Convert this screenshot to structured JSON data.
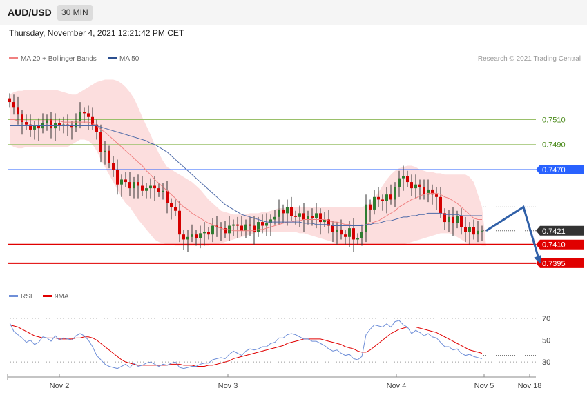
{
  "header": {
    "symbol": "AUD/USD",
    "timeframe_label": "30 MIN",
    "datetime": "Thursday, November 4, 2021 12:21:42 PM CET",
    "copyright": "Research © 2021 Trading Central"
  },
  "colors": {
    "bollinger_band": "#fbd8d8",
    "ma20": "#f08080",
    "ma50": "#4d6aa8",
    "candle_up": "#2e7d32",
    "candle_down": "#d50000",
    "resistance_line": "#9ac06a",
    "pivot_line": "#2962ff",
    "support_line": "#e00000",
    "current_price_tag": "#333333",
    "rsi": "#6f8fd8",
    "rsi_ma": "#e00000",
    "forecast_arrow": "#3060a8"
  },
  "chart_data": [
    {
      "type": "candlestick",
      "legend": [
        {
          "label": "MA 20 + Bollinger Bands",
          "color": "#f08080"
        },
        {
          "label": "MA 50",
          "color": "#4d6aa8"
        }
      ],
      "x_tick_labels": [
        "Nov 2",
        "Nov 3",
        "Nov 4",
        "Nov 5",
        "Nov 18"
      ],
      "ylim": [
        0.7385,
        0.7545
      ],
      "levels": [
        {
          "label": "0.7510",
          "value": 0.751,
          "kind": "resistance"
        },
        {
          "label": "0.7490",
          "value": 0.749,
          "kind": "resistance"
        },
        {
          "label": "0.7470",
          "value": 0.747,
          "kind": "pivot"
        },
        {
          "label": "0.7421",
          "value": 0.7421,
          "kind": "current"
        },
        {
          "label": "0.7410",
          "value": 0.741,
          "kind": "support"
        },
        {
          "label": "0.7395",
          "value": 0.7395,
          "kind": "support"
        }
      ],
      "close": [
        0.7524,
        0.752,
        0.7514,
        0.7508,
        0.7506,
        0.7502,
        0.7505,
        0.7503,
        0.7507,
        0.751,
        0.7503,
        0.7507,
        0.7505,
        0.7506,
        0.7505,
        0.7504,
        0.7509,
        0.7516,
        0.7515,
        0.7512,
        0.7506,
        0.75,
        0.7484,
        0.7485,
        0.7475,
        0.747,
        0.7458,
        0.7462,
        0.746,
        0.7455,
        0.746,
        0.7457,
        0.7453,
        0.7455,
        0.7457,
        0.7455,
        0.7452,
        0.7453,
        0.7443,
        0.744,
        0.7437,
        0.7418,
        0.7414,
        0.7416,
        0.7418,
        0.7415,
        0.7419,
        0.742,
        0.7418,
        0.7425,
        0.7424,
        0.7423,
        0.7419,
        0.7425,
        0.7426,
        0.7425,
        0.7421,
        0.7426,
        0.7425,
        0.742,
        0.7428,
        0.7425,
        0.7427,
        0.743,
        0.7432,
        0.7438,
        0.7435,
        0.744,
        0.7433,
        0.7432,
        0.7435,
        0.743,
        0.7433,
        0.7431,
        0.7435,
        0.7428,
        0.743,
        0.7425,
        0.742,
        0.7422,
        0.7418,
        0.7416,
        0.7423,
        0.7414,
        0.7415,
        0.742,
        0.7442,
        0.7438,
        0.7448,
        0.7446,
        0.7445,
        0.745,
        0.7446,
        0.7456,
        0.7463,
        0.7465,
        0.746,
        0.7455,
        0.7458,
        0.7456,
        0.745,
        0.7454,
        0.745,
        0.7448,
        0.7435,
        0.7428,
        0.7432,
        0.7427,
        0.7433,
        0.7424,
        0.742,
        0.7424,
        0.7418,
        0.7421,
        0.7421
      ],
      "ma20": [
        0.751,
        0.751,
        0.7509,
        0.7509,
        0.7509,
        0.7509,
        0.7509,
        0.7509,
        0.7509,
        0.7509,
        0.7509,
        0.7509,
        0.7509,
        0.7508,
        0.7508,
        0.7508,
        0.7508,
        0.7508,
        0.7508,
        0.7508,
        0.7507,
        0.7505,
        0.7502,
        0.75,
        0.7497,
        0.7494,
        0.7491,
        0.7488,
        0.7485,
        0.7482,
        0.7479,
        0.7476,
        0.7473,
        0.7469,
        0.7466,
        0.7462,
        0.7459,
        0.7456,
        0.7453,
        0.745,
        0.7447,
        0.7443,
        0.744,
        0.7438,
        0.7435,
        0.7433,
        0.7431,
        0.7429,
        0.7427,
        0.7426,
        0.7424,
        0.7423,
        0.7422,
        0.7422,
        0.7421,
        0.7421,
        0.7421,
        0.7421,
        0.7421,
        0.7421,
        0.7422,
        0.7422,
        0.7423,
        0.7424,
        0.7425,
        0.7426,
        0.7427,
        0.7428,
        0.7428,
        0.7429,
        0.7429,
        0.743,
        0.743,
        0.743,
        0.743,
        0.743,
        0.743,
        0.7429,
        0.7428,
        0.7428,
        0.7427,
        0.7426,
        0.7426,
        0.7425,
        0.7425,
        0.7425,
        0.7426,
        0.7427,
        0.7428,
        0.7429,
        0.7431,
        0.7433,
        0.7435,
        0.7437,
        0.744,
        0.7442,
        0.7444,
        0.7446,
        0.7447,
        0.7449,
        0.745,
        0.7451,
        0.7451,
        0.7451,
        0.745,
        0.7448,
        0.7447,
        0.7445,
        0.7443,
        0.744,
        0.7437,
        0.7434,
        0.7431,
        0.743,
        0.743
      ],
      "ma50": [
        0.7505,
        0.7505,
        0.7505,
        0.7505,
        0.7505,
        0.7505,
        0.7505,
        0.7505,
        0.7505,
        0.7505,
        0.7505,
        0.7505,
        0.7505,
        0.7505,
        0.7505,
        0.7505,
        0.7505,
        0.7505,
        0.7505,
        0.7505,
        0.7505,
        0.7505,
        0.7504,
        0.7503,
        0.7502,
        0.7501,
        0.75,
        0.7499,
        0.7498,
        0.7497,
        0.7496,
        0.7495,
        0.7494,
        0.7493,
        0.7491,
        0.749,
        0.7488,
        0.7486,
        0.7484,
        0.7481,
        0.7478,
        0.7475,
        0.7472,
        0.7469,
        0.7466,
        0.7463,
        0.746,
        0.7457,
        0.7454,
        0.7451,
        0.7448,
        0.7445,
        0.7442,
        0.744,
        0.7438,
        0.7436,
        0.7434,
        0.7433,
        0.7432,
        0.7431,
        0.743,
        0.7429,
        0.7428,
        0.7428,
        0.7428,
        0.7428,
        0.7428,
        0.7428,
        0.7428,
        0.7428,
        0.7428,
        0.7427,
        0.7427,
        0.7427,
        0.7426,
        0.7426,
        0.7426,
        0.7426,
        0.7425,
        0.7425,
        0.7425,
        0.7425,
        0.7425,
        0.7425,
        0.7425,
        0.7425,
        0.7426,
        0.7426,
        0.7427,
        0.7427,
        0.7428,
        0.7429,
        0.7429,
        0.743,
        0.7431,
        0.7432,
        0.7432,
        0.7433,
        0.7433,
        0.7434,
        0.7434,
        0.7435,
        0.7435,
        0.7435,
        0.7435,
        0.7434,
        0.7434,
        0.7434,
        0.7434,
        0.7433,
        0.7433,
        0.7433,
        0.7433,
        0.7433,
        0.7433
      ],
      "bb_upper": [
        0.753,
        0.7532,
        0.7533,
        0.7533,
        0.7534,
        0.7534,
        0.7534,
        0.7534,
        0.7534,
        0.7534,
        0.7534,
        0.7534,
        0.7533,
        0.7532,
        0.7531,
        0.753,
        0.753,
        0.7532,
        0.7534,
        0.7536,
        0.7538,
        0.754,
        0.7541,
        0.7542,
        0.7542,
        0.7542,
        0.7541,
        0.7539,
        0.7536,
        0.7532,
        0.7527,
        0.752,
        0.7512,
        0.7505,
        0.7498,
        0.749,
        0.7483,
        0.7477,
        0.7472,
        0.747,
        0.7468,
        0.7466,
        0.7464,
        0.7462,
        0.746,
        0.7457,
        0.7454,
        0.745,
        0.7446,
        0.7443,
        0.744,
        0.7437,
        0.7436,
        0.7435,
        0.7434,
        0.7434,
        0.7434,
        0.7434,
        0.7435,
        0.7435,
        0.7435,
        0.7436,
        0.7436,
        0.7437,
        0.7438,
        0.7439,
        0.7439,
        0.744,
        0.744,
        0.744,
        0.744,
        0.744,
        0.744,
        0.744,
        0.744,
        0.744,
        0.744,
        0.744,
        0.744,
        0.744,
        0.744,
        0.744,
        0.744,
        0.744,
        0.744,
        0.744,
        0.7441,
        0.7443,
        0.7447,
        0.7452,
        0.7457,
        0.7462,
        0.7466,
        0.7469,
        0.7471,
        0.7472,
        0.7473,
        0.7473,
        0.7472,
        0.747,
        0.7469,
        0.7468,
        0.7468,
        0.7467,
        0.7467,
        0.7466,
        0.7466,
        0.7466,
        0.7466,
        0.7466,
        0.7466,
        0.7464,
        0.746,
        0.745,
        0.744
      ],
      "bb_lower": [
        0.749,
        0.7488,
        0.7487,
        0.7487,
        0.7488,
        0.7488,
        0.7488,
        0.7488,
        0.7488,
        0.7488,
        0.7488,
        0.7488,
        0.7488,
        0.7488,
        0.7488,
        0.749,
        0.7492,
        0.7494,
        0.7494,
        0.7493,
        0.749,
        0.7485,
        0.7478,
        0.7472,
        0.7466,
        0.746,
        0.7454,
        0.7448,
        0.7443,
        0.744,
        0.7435,
        0.743,
        0.7426,
        0.7422,
        0.7418,
        0.7414,
        0.7412,
        0.7411,
        0.741,
        0.741,
        0.7409,
        0.7409,
        0.7409,
        0.7409,
        0.7409,
        0.7409,
        0.7409,
        0.7409,
        0.7409,
        0.741,
        0.741,
        0.7411,
        0.7412,
        0.7413,
        0.7414,
        0.7415,
        0.7416,
        0.7417,
        0.7418,
        0.7419,
        0.742,
        0.742,
        0.742,
        0.742,
        0.742,
        0.742,
        0.742,
        0.742,
        0.742,
        0.742,
        0.7419,
        0.7419,
        0.7418,
        0.7417,
        0.7416,
        0.7415,
        0.7414,
        0.7413,
        0.7412,
        0.7411,
        0.741,
        0.741,
        0.741,
        0.741,
        0.741,
        0.741,
        0.741,
        0.741,
        0.741,
        0.741,
        0.741,
        0.741,
        0.741,
        0.741,
        0.741,
        0.741,
        0.7411,
        0.7412,
        0.7413,
        0.7414,
        0.7415,
        0.7416,
        0.7417,
        0.7418,
        0.7419,
        0.7419,
        0.7419,
        0.7418,
        0.7416,
        0.7414,
        0.7412,
        0.741,
        0.741,
        0.741,
        0.7409,
        0.7409
      ]
    },
    {
      "type": "line",
      "legend": [
        {
          "label": "RSI",
          "color": "#6f8fd8"
        },
        {
          "label": "9MA",
          "color": "#e00000"
        }
      ],
      "ylim": [
        20,
        80
      ],
      "y_tick_labels": [
        "70",
        "50",
        "30"
      ],
      "series": [
        {
          "name": "RSI",
          "values": [
            66,
            58,
            55,
            52,
            48,
            50,
            46,
            48,
            53,
            52,
            49,
            54,
            50,
            52,
            51,
            50,
            54,
            56,
            54,
            50,
            44,
            36,
            32,
            28,
            26,
            25,
            24,
            26,
            28,
            25,
            29,
            26,
            27,
            29,
            30,
            28,
            26,
            28,
            27,
            29,
            30,
            25,
            24,
            25,
            26,
            26,
            28,
            29,
            29,
            32,
            33,
            34,
            33,
            37,
            40,
            38,
            36,
            40,
            42,
            41,
            42,
            44,
            44,
            47,
            48,
            52,
            52,
            55,
            56,
            55,
            53,
            51,
            51,
            49,
            49,
            47,
            45,
            42,
            40,
            41,
            38,
            36,
            37,
            33,
            32,
            35,
            55,
            60,
            64,
            63,
            62,
            65,
            62,
            67,
            68,
            64,
            62,
            56,
            59,
            57,
            54,
            56,
            53,
            52,
            48,
            44,
            44,
            41,
            42,
            38,
            36,
            37,
            35,
            34,
            33
          ]
        },
        {
          "name": "9MA",
          "values": [
            64,
            63,
            62,
            60,
            58,
            56,
            54,
            53,
            52,
            52,
            52,
            52,
            51,
            51,
            51,
            51,
            52,
            52,
            53,
            53,
            52,
            50,
            47,
            44,
            41,
            38,
            35,
            32,
            30,
            29,
            28,
            27,
            27,
            27,
            27,
            27,
            27,
            27,
            27,
            28,
            28,
            28,
            27,
            27,
            27,
            26,
            26,
            26,
            27,
            27,
            28,
            29,
            30,
            31,
            33,
            34,
            35,
            36,
            37,
            38,
            39,
            40,
            41,
            42,
            43,
            44,
            45,
            47,
            48,
            49,
            50,
            51,
            51,
            51,
            51,
            51,
            50,
            49,
            48,
            47,
            46,
            44,
            43,
            42,
            40,
            39,
            39,
            41,
            44,
            47,
            50,
            53,
            56,
            58,
            60,
            61,
            62,
            62,
            62,
            61,
            60,
            59,
            58,
            57,
            55,
            53,
            51,
            49,
            47,
            45,
            43,
            41,
            40,
            39,
            38
          ]
        }
      ],
      "forecast_path": [
        {
          "x_offset_bars": 0,
          "value": 0.7421
        },
        {
          "x_offset_bars": 9,
          "value": 0.744
        },
        {
          "x_offset_bars": 13,
          "value": 0.7395
        }
      ]
    }
  ]
}
